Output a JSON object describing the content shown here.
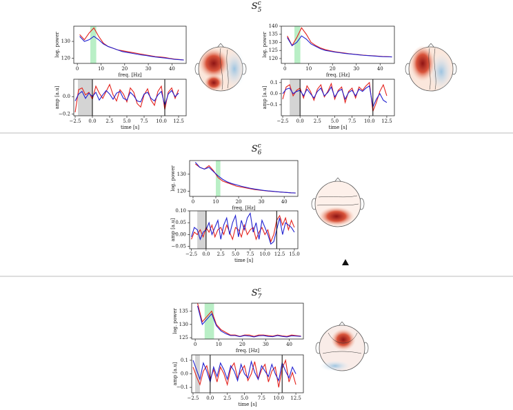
{
  "headings": [
    {
      "text": "S",
      "sub": "5",
      "sup": "c"
    },
    {
      "text": "S",
      "sub": "6",
      "sup": "c"
    },
    {
      "text": "S",
      "sub": "7",
      "sup": "c"
    }
  ],
  "chart_data": [
    {
      "type": "line",
      "xlabel": "freq. [Hz]",
      "ylabel": "log. power",
      "xlim": [
        -1.5,
        46
      ],
      "ylim": [
        117,
        139
      ],
      "xticks": [
        0,
        10,
        20,
        30,
        40
      ],
      "yticks": [
        120,
        130
      ],
      "highlight": [
        5.5,
        8
      ],
      "highlight_color": "#b9efc6",
      "x": [
        1,
        3,
        5,
        7,
        9,
        11,
        13,
        15,
        17,
        19,
        21,
        23,
        25,
        27,
        29,
        31,
        33,
        35,
        37,
        39,
        41,
        43,
        45
      ],
      "series": [
        {
          "color": "#e3211c",
          "values": [
            134,
            131,
            135,
            138,
            133,
            129,
            127,
            126,
            125,
            124.5,
            124,
            123.5,
            123,
            122.5,
            122,
            121.5,
            121,
            120.8,
            120.5,
            120,
            119.6,
            119.3,
            119
          ]
        },
        {
          "color": "#1f1fd0",
          "values": [
            133,
            130,
            131,
            133,
            131,
            128.5,
            127,
            126,
            125,
            124,
            123.5,
            123,
            122.5,
            122,
            121.7,
            121.2,
            120.8,
            120.5,
            120.2,
            119.8,
            119.4,
            119.2,
            119
          ]
        }
      ]
    },
    {
      "type": "line",
      "xlabel": "time [s]",
      "ylabel": "amp [a.u]",
      "xlim": [
        -2.7,
        13.6
      ],
      "ylim": [
        -0.22,
        0.2
      ],
      "xticks": [
        {
          "value": -2.5,
          "label": "−2.5"
        },
        {
          "value": 0,
          "label": "0.0"
        },
        2.5,
        {
          "value": 5,
          "label": "5.0"
        },
        7.5,
        {
          "value": 10,
          "label": "10.0"
        },
        12.5
      ],
      "yticks": [
        {
          "value": -0.2,
          "label": "−0.2"
        },
        {
          "value": 0,
          "label": "0.0"
        }
      ],
      "highlight": [
        -2.1,
        0
      ],
      "highlight_color": "#d4d4d4",
      "vlines": [
        0,
        10.5
      ],
      "x": [
        -2.5,
        -2,
        -1.5,
        -1,
        -0.5,
        0,
        0.5,
        1,
        1.5,
        2,
        2.5,
        3,
        3.5,
        4,
        4.5,
        5,
        5.5,
        6,
        6.5,
        7,
        7.5,
        8,
        8.5,
        9,
        9.5,
        10,
        10.5,
        11,
        11.5,
        12,
        12.5
      ],
      "series": [
        {
          "color": "#e3211c",
          "values": [
            -0.18,
            0.08,
            0.1,
            0.02,
            0.05,
            -0.03,
            0.12,
            0.04,
            -0.02,
            0.06,
            0.14,
            0.02,
            -0.05,
            0.08,
            0.03,
            -0.06,
            0.1,
            0.05,
            -0.08,
            -0.12,
            0.02,
            0.09,
            -0.04,
            -0.1,
            0.06,
            0.12,
            -0.15,
            0.05,
            0.1,
            -0.02,
            0.08
          ]
        },
        {
          "color": "#1f1fd0",
          "values": [
            -0.05,
            0.03,
            0.06,
            -0.02,
            0.04,
            0.0,
            0.05,
            -0.04,
            0.02,
            0.07,
            0.03,
            -0.03,
            0.04,
            0.06,
            -0.02,
            -0.04,
            0.05,
            0.01,
            -0.05,
            -0.06,
            0.03,
            0.05,
            -0.02,
            -0.05,
            0.02,
            0.06,
            -0.1,
            0.03,
            0.07,
            0.0,
            0.04
          ]
        }
      ]
    },
    {
      "type": "line",
      "xlabel": "freq. [Hz]",
      "ylabel": "log. power",
      "xlim": [
        -1.5,
        46
      ],
      "ylim": [
        117,
        140
      ],
      "xticks": [
        0,
        10,
        20,
        30,
        40
      ],
      "yticks": [
        120,
        125,
        130,
        135,
        140
      ],
      "highlight": [
        4,
        6.5
      ],
      "highlight_color": "#b9efc6",
      "x": [
        1,
        3,
        5,
        7,
        9,
        11,
        13,
        15,
        17,
        19,
        21,
        23,
        25,
        27,
        29,
        31,
        33,
        35,
        37,
        39,
        41,
        43,
        45
      ],
      "series": [
        {
          "color": "#e3211c",
          "values": [
            134,
            128,
            133,
            139,
            135,
            130,
            128,
            126.5,
            125.5,
            124.8,
            124.2,
            123.8,
            123.4,
            123,
            122.7,
            122.4,
            122.1,
            121.9,
            121.7,
            121.5,
            121.3,
            121.2,
            121
          ]
        },
        {
          "color": "#1f1fd0",
          "values": [
            133,
            128,
            130,
            134,
            132,
            129,
            127.5,
            126,
            125,
            124.5,
            124,
            123.6,
            123.2,
            122.9,
            122.6,
            122.3,
            122,
            121.8,
            121.6,
            121.4,
            121.2,
            121.1,
            121
          ]
        }
      ]
    },
    {
      "type": "line",
      "xlabel": "time [s]",
      "ylabel": "amp [a.u]",
      "xlim": [
        -2.7,
        13.6
      ],
      "ylim": [
        -0.2,
        0.13
      ],
      "xticks": [
        {
          "value": -2.5,
          "label": "−2.5"
        },
        {
          "value": 0,
          "label": "0.0"
        },
        2.5,
        {
          "value": 5,
          "label": "5.0"
        },
        7.5,
        {
          "value": 10,
          "label": "10.0"
        },
        12.5
      ],
      "yticks": [
        {
          "value": -0.1,
          "label": "−0.1"
        },
        {
          "value": 0,
          "label": "0.0"
        },
        0.1
      ],
      "highlight": [
        -1.5,
        0
      ],
      "highlight_color": "#d4d4d4",
      "vlines": [
        0,
        10.5
      ],
      "x": [
        -2.5,
        -2,
        -1.5,
        -1,
        -0.5,
        0,
        0.5,
        1,
        1.5,
        2,
        2.5,
        3,
        3.5,
        4,
        4.5,
        5,
        5.5,
        6,
        6.5,
        7,
        7.5,
        8,
        8.5,
        9,
        9.5,
        10,
        10.5,
        11,
        11.5,
        12,
        12.5
      ],
      "series": [
        {
          "color": "#e3211c",
          "values": [
            -0.05,
            0.06,
            0.08,
            -0.02,
            0.03,
            0.05,
            -0.04,
            0.07,
            0.02,
            -0.06,
            0.04,
            0.08,
            -0.03,
            0.02,
            0.09,
            -0.05,
            0.03,
            0.06,
            -0.08,
            0.02,
            0.05,
            -0.04,
            0.06,
            0.03,
            0.07,
            0.1,
            -0.16,
            -0.08,
            0.02,
            0.08,
            -0.02
          ]
        },
        {
          "color": "#1f1fd0",
          "values": [
            0.0,
            0.04,
            0.05,
            0.0,
            0.02,
            0.03,
            -0.02,
            0.04,
            0.0,
            -0.04,
            0.02,
            0.05,
            -0.02,
            0.01,
            0.06,
            -0.03,
            0.02,
            0.04,
            -0.05,
            0.01,
            0.03,
            -0.02,
            0.04,
            0.02,
            0.05,
            0.07,
            -0.12,
            -0.05,
            0.0,
            -0.06,
            -0.08
          ]
        }
      ]
    },
    {
      "type": "line",
      "xlabel": "freq. [Hz]",
      "ylabel": "log. power",
      "xlim": [
        -1.5,
        46
      ],
      "ylim": [
        117,
        138
      ],
      "xticks": [
        0,
        10,
        20,
        30,
        40
      ],
      "yticks": [
        120,
        130
      ],
      "highlight": [
        10,
        12
      ],
      "highlight_color": "#b9efc6",
      "x": [
        1,
        3,
        5,
        7,
        9,
        11,
        13,
        15,
        17,
        19,
        21,
        23,
        25,
        27,
        29,
        31,
        33,
        35,
        37,
        39,
        41,
        43,
        45
      ],
      "series": [
        {
          "color": "#e3211c",
          "values": [
            136,
            134,
            133,
            135,
            132,
            128,
            126,
            125,
            124,
            123,
            122.5,
            122,
            121.5,
            121,
            120.7,
            120.4,
            120.1,
            119.9,
            119.7,
            119.5,
            119.3,
            119.1,
            119
          ]
        },
        {
          "color": "#1f1fd0",
          "values": [
            137,
            134,
            133,
            134,
            131.5,
            129,
            127,
            125.5,
            124.5,
            123.8,
            123,
            122.4,
            121.8,
            121.3,
            120.9,
            120.5,
            120.2,
            120,
            119.7,
            119.5,
            119.3,
            119.1,
            119
          ]
        }
      ]
    },
    {
      "type": "line",
      "xlabel": "time [s]",
      "ylabel": "amp [a.u]",
      "xlim": [
        -2.8,
        15.6
      ],
      "ylim": [
        -0.06,
        0.1
      ],
      "xticks": [
        {
          "value": -2.5,
          "label": "−2.5"
        },
        {
          "value": 0,
          "label": "0.0"
        },
        2.5,
        {
          "value": 5,
          "label": "5.0"
        },
        7.5,
        {
          "value": 10,
          "label": "10.0"
        },
        12.5,
        {
          "value": 15,
          "label": "15.0"
        }
      ],
      "yticks": [
        {
          "value": -0.05,
          "label": "−0.05"
        },
        {
          "value": 0,
          "label": "0.00"
        },
        0.05,
        {
          "value": 0.1,
          "label": "0.10"
        }
      ],
      "highlight": [
        -1.5,
        0
      ],
      "highlight_color": "#d4d4d4",
      "vlines": [
        0,
        12
      ],
      "x": [
        -2.5,
        -2,
        -1.5,
        -1,
        -0.5,
        0,
        0.5,
        1,
        1.5,
        2,
        2.5,
        3,
        3.5,
        4,
        4.5,
        5,
        5.5,
        6,
        6.5,
        7,
        7.5,
        8,
        8.5,
        9,
        9.5,
        10,
        10.5,
        11,
        11.5,
        12,
        12.5,
        13,
        13.5,
        14,
        14.5,
        15
      ],
      "series": [
        {
          "color": "#e3211c",
          "values": [
            -0.02,
            0.01,
            0.0,
            0.02,
            -0.01,
            0.03,
            0.01,
            0.04,
            -0.01,
            0.02,
            0.03,
            0.0,
            0.04,
            0.01,
            -0.02,
            0.03,
            0.02,
            -0.01,
            0.04,
            0.0,
            0.02,
            0.03,
            -0.02,
            0.01,
            0.03,
            0.0,
            0.02,
            -0.03,
            0.0,
            0.06,
            0.08,
            0.04,
            0.07,
            0.02,
            0.06,
            0.03
          ]
        },
        {
          "color": "#1f1fd0",
          "values": [
            -0.01,
            0.03,
            0.02,
            -0.02,
            0.01,
            0.02,
            0.05,
            0.0,
            0.03,
            0.06,
            -0.02,
            0.04,
            0.07,
            0.0,
            0.05,
            0.08,
            -0.01,
            0.06,
            0.02,
            0.07,
            0.09,
            0.01,
            0.05,
            -0.02,
            0.06,
            0.03,
            0.0,
            -0.04,
            -0.03,
            0.02,
            0.07,
            0.0,
            0.05,
            0.04,
            0.03,
            0.01
          ]
        }
      ]
    },
    {
      "type": "line",
      "xlabel": "freq. [Hz]",
      "ylabel": "log. power",
      "xlim": [
        -1.5,
        46
      ],
      "ylim": [
        124.5,
        138
      ],
      "xticks": [
        0,
        10,
        20,
        30,
        40
      ],
      "yticks": [
        125,
        130,
        135
      ],
      "highlight": [
        4,
        8
      ],
      "highlight_color": "#b9efc6",
      "x": [
        1,
        3,
        5,
        7,
        9,
        11,
        13,
        15,
        17,
        19,
        21,
        23,
        25,
        27,
        29,
        31,
        33,
        35,
        37,
        39,
        41,
        43,
        45
      ],
      "series": [
        {
          "color": "#e3211c",
          "values": [
            138,
            131,
            133,
            135,
            130,
            128,
            127,
            126,
            126,
            125.5,
            126,
            126,
            125.5,
            126,
            126,
            125.8,
            125.6,
            126,
            125.7,
            125.5,
            126,
            125.8,
            125.6
          ]
        },
        {
          "color": "#1f1fd0",
          "values": [
            137,
            130,
            132,
            134,
            129.5,
            127.5,
            126.5,
            125.8,
            125.8,
            125.4,
            125.8,
            125.6,
            125.3,
            125.7,
            125.8,
            125.5,
            125.4,
            125.8,
            125.5,
            125.3,
            125.7,
            125.6,
            125.5
          ]
        }
      ]
    },
    {
      "type": "line",
      "xlabel": "time [s]",
      "ylabel": "amp [a.u]",
      "xlim": [
        -2.7,
        13.6
      ],
      "ylim": [
        -0.14,
        0.14
      ],
      "xticks": [
        {
          "value": -2.5,
          "label": "−2.5"
        },
        {
          "value": 0,
          "label": "0.0"
        },
        2.5,
        {
          "value": 5,
          "label": "5.0"
        },
        7.5,
        {
          "value": 10,
          "label": "10.0"
        },
        12.5
      ],
      "yticks": [
        {
          "value": -0.1,
          "label": "−0.1"
        },
        {
          "value": 0,
          "label": "0.0"
        },
        0.1
      ],
      "highlight": [
        -2.2,
        -1.5
      ],
      "highlight_color": "#d4d4d4",
      "vlines": [
        0,
        10.5
      ],
      "x": [
        -2.5,
        -2,
        -1.5,
        -1,
        -0.5,
        0,
        0.5,
        1,
        1.5,
        2,
        2.5,
        3,
        3.5,
        4,
        4.5,
        5,
        5.5,
        6,
        6.5,
        7,
        7.5,
        8,
        8.5,
        9,
        9.5,
        10,
        10.5,
        11,
        11.5,
        12,
        12.5
      ],
      "series": [
        {
          "color": "#e3211c",
          "values": [
            0.05,
            -0.02,
            -0.08,
            0.02,
            0.06,
            -0.04,
            0.03,
            -0.06,
            0.05,
            0.0,
            -0.08,
            0.04,
            0.08,
            -0.03,
            0.02,
            0.06,
            -0.05,
            0.0,
            0.09,
            -0.04,
            0.03,
            0.07,
            -0.06,
            0.02,
            0.05,
            -0.1,
            0.04,
            0.1,
            -0.06,
            0.01,
            -0.08
          ]
        },
        {
          "color": "#1f1fd0",
          "values": [
            0.1,
            0.03,
            -0.04,
            0.08,
            0.02,
            -0.06,
            0.05,
            -0.02,
            0.08,
            0.03,
            -0.04,
            0.06,
            0.02,
            -0.05,
            0.07,
            0.0,
            -0.03,
            0.09,
            0.01,
            -0.04,
            0.06,
            0.02,
            -0.02,
            0.07,
            0.0,
            -0.05,
            0.08,
            0.02,
            -0.03,
            0.05,
            0.0
          ]
        }
      ]
    }
  ]
}
